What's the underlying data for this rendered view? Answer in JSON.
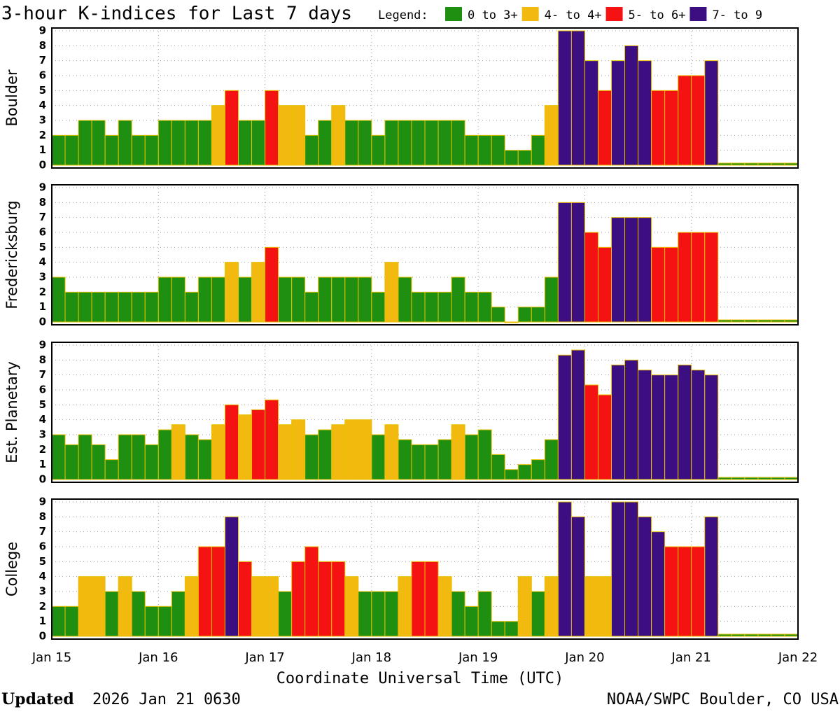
{
  "title": "3-hour K-indices for Last 7 days",
  "legend_label": "Legend:",
  "legend": [
    {
      "label": "0 to 3+",
      "color": "#1f8f12"
    },
    {
      "label": "4- to 4+",
      "color": "#f2b90f"
    },
    {
      "label": "5- to 6+",
      "color": "#f41212"
    },
    {
      "label": "7- to 9",
      "color": "#3b0f82"
    }
  ],
  "x_axis": {
    "xlabel": "Coordinate Universal Time (UTC)",
    "xlim": [
      0,
      168
    ],
    "xticks": [
      {
        "value": 0,
        "label": "Jan 15"
      },
      {
        "value": 24,
        "label": "Jan 16"
      },
      {
        "value": 48,
        "label": "Jan 17"
      },
      {
        "value": 72,
        "label": "Jan 18"
      },
      {
        "value": 96,
        "label": "Jan 19"
      },
      {
        "value": 120,
        "label": "Jan 20"
      },
      {
        "value": 144,
        "label": "Jan 21"
      },
      {
        "value": 168,
        "label": "Jan 22"
      }
    ]
  },
  "footer": {
    "updated": "Updated",
    "time": "2026 Jan 21 0630",
    "source": "NOAA/SWPC Boulder, CO USA"
  },
  "chart_data": [
    {
      "type": "bar",
      "ylabel": "Boulder",
      "ylim": [
        0,
        9
      ],
      "yticks": [
        0,
        1,
        2,
        3,
        4,
        5,
        6,
        7,
        8,
        9
      ],
      "grid": true,
      "x": [
        0,
        3,
        6,
        9,
        12,
        15,
        18,
        21,
        24,
        27,
        30,
        33,
        36,
        39,
        42,
        45,
        48,
        51,
        54,
        57,
        60,
        63,
        66,
        69,
        72,
        75,
        78,
        81,
        84,
        87,
        90,
        93,
        96,
        99,
        102,
        105,
        108,
        111,
        114,
        117,
        120,
        123,
        126,
        129,
        132,
        135,
        138,
        141,
        144,
        147,
        150,
        153,
        156,
        159,
        162,
        165
      ],
      "values": [
        2,
        2,
        3,
        3,
        2,
        3,
        2,
        2,
        3,
        3,
        3,
        3,
        4,
        5,
        3,
        3,
        5,
        4,
        4,
        2,
        3,
        4,
        3,
        3,
        2,
        3,
        3,
        3,
        3,
        3,
        3,
        2,
        2,
        2,
        1,
        1,
        2,
        4,
        9,
        9,
        7,
        5,
        7,
        8,
        7,
        5,
        5,
        6,
        6,
        7,
        null,
        null,
        null,
        null,
        null,
        null
      ],
      "colors": [
        "#1f8f12",
        "#1f8f12",
        "#1f8f12",
        "#1f8f12",
        "#1f8f12",
        "#1f8f12",
        "#1f8f12",
        "#1f8f12",
        "#1f8f12",
        "#1f8f12",
        "#1f8f12",
        "#1f8f12",
        "#f2b90f",
        "#f41212",
        "#1f8f12",
        "#1f8f12",
        "#f41212",
        "#f2b90f",
        "#f2b90f",
        "#1f8f12",
        "#1f8f12",
        "#f2b90f",
        "#1f8f12",
        "#1f8f12",
        "#1f8f12",
        "#1f8f12",
        "#1f8f12",
        "#1f8f12",
        "#1f8f12",
        "#1f8f12",
        "#1f8f12",
        "#1f8f12",
        "#1f8f12",
        "#1f8f12",
        "#1f8f12",
        "#1f8f12",
        "#1f8f12",
        "#f2b90f",
        "#3b0f82",
        "#3b0f82",
        "#3b0f82",
        "#f41212",
        "#3b0f82",
        "#3b0f82",
        "#3b0f82",
        "#f41212",
        "#f41212",
        "#f41212",
        "#f41212",
        "#3b0f82",
        null,
        null,
        null,
        null,
        null,
        null
      ]
    },
    {
      "type": "bar",
      "ylabel": "Fredericksburg",
      "ylim": [
        0,
        9
      ],
      "yticks": [
        0,
        1,
        2,
        3,
        4,
        5,
        6,
        7,
        8,
        9
      ],
      "grid": true,
      "x": [
        0,
        3,
        6,
        9,
        12,
        15,
        18,
        21,
        24,
        27,
        30,
        33,
        36,
        39,
        42,
        45,
        48,
        51,
        54,
        57,
        60,
        63,
        66,
        69,
        72,
        75,
        78,
        81,
        84,
        87,
        90,
        93,
        96,
        99,
        102,
        105,
        108,
        111,
        114,
        117,
        120,
        123,
        126,
        129,
        132,
        135,
        138,
        141,
        144,
        147,
        150,
        153,
        156,
        159,
        162,
        165
      ],
      "values": [
        3,
        2,
        2,
        2,
        2,
        2,
        2,
        2,
        3,
        3,
        2,
        3,
        3,
        4,
        3,
        4,
        5,
        3,
        3,
        2,
        3,
        3,
        3,
        3,
        2,
        4,
        3,
        2,
        2,
        2,
        3,
        2,
        2,
        1,
        0,
        1,
        1,
        3,
        8,
        8,
        6,
        5,
        7,
        7,
        7,
        5,
        5,
        6,
        6,
        6,
        null,
        null,
        null,
        null,
        null,
        null
      ],
      "colors": [
        "#1f8f12",
        "#1f8f12",
        "#1f8f12",
        "#1f8f12",
        "#1f8f12",
        "#1f8f12",
        "#1f8f12",
        "#1f8f12",
        "#1f8f12",
        "#1f8f12",
        "#1f8f12",
        "#1f8f12",
        "#1f8f12",
        "#f2b90f",
        "#1f8f12",
        "#f2b90f",
        "#f41212",
        "#1f8f12",
        "#1f8f12",
        "#1f8f12",
        "#1f8f12",
        "#1f8f12",
        "#1f8f12",
        "#1f8f12",
        "#1f8f12",
        "#f2b90f",
        "#1f8f12",
        "#1f8f12",
        "#1f8f12",
        "#1f8f12",
        "#1f8f12",
        "#1f8f12",
        "#1f8f12",
        "#1f8f12",
        "#1f8f12",
        "#1f8f12",
        "#1f8f12",
        "#1f8f12",
        "#3b0f82",
        "#3b0f82",
        "#f41212",
        "#f41212",
        "#3b0f82",
        "#3b0f82",
        "#3b0f82",
        "#f41212",
        "#f41212",
        "#f41212",
        "#f41212",
        "#f41212",
        null,
        null,
        null,
        null,
        null,
        null
      ]
    },
    {
      "type": "bar",
      "ylabel": "Est. Planetary",
      "ylim": [
        0,
        9
      ],
      "yticks": [
        0,
        1,
        2,
        3,
        4,
        5,
        6,
        7,
        8,
        9
      ],
      "grid": true,
      "x": [
        0,
        3,
        6,
        9,
        12,
        15,
        18,
        21,
        24,
        27,
        30,
        33,
        36,
        39,
        42,
        45,
        48,
        51,
        54,
        57,
        60,
        63,
        66,
        69,
        72,
        75,
        78,
        81,
        84,
        87,
        90,
        93,
        96,
        99,
        102,
        105,
        108,
        111,
        114,
        117,
        120,
        123,
        126,
        129,
        132,
        135,
        138,
        141,
        144,
        147,
        150,
        153,
        156,
        159,
        162,
        165
      ],
      "values": [
        3,
        2.33,
        3,
        2.33,
        1.33,
        3,
        3,
        2.33,
        3.33,
        3.67,
        3,
        2.67,
        3.67,
        5,
        4.33,
        4.67,
        5.33,
        3.67,
        4,
        3,
        3.33,
        3.67,
        4,
        4,
        3,
        3.67,
        2.67,
        2.33,
        2.33,
        2.67,
        3.67,
        3,
        3.33,
        1.67,
        0.67,
        1,
        1.33,
        2.67,
        8.33,
        8.67,
        6.33,
        5.67,
        7.67,
        8,
        7.33,
        7,
        7,
        7.67,
        7.33,
        7,
        null,
        null,
        null,
        null,
        null,
        null
      ],
      "colors": [
        "#1f8f12",
        "#1f8f12",
        "#1f8f12",
        "#1f8f12",
        "#1f8f12",
        "#1f8f12",
        "#1f8f12",
        "#1f8f12",
        "#1f8f12",
        "#f2b90f",
        "#1f8f12",
        "#1f8f12",
        "#f2b90f",
        "#f41212",
        "#f2b90f",
        "#f41212",
        "#f41212",
        "#f2b90f",
        "#f2b90f",
        "#1f8f12",
        "#1f8f12",
        "#f2b90f",
        "#f2b90f",
        "#f2b90f",
        "#1f8f12",
        "#f2b90f",
        "#1f8f12",
        "#1f8f12",
        "#1f8f12",
        "#1f8f12",
        "#f2b90f",
        "#1f8f12",
        "#1f8f12",
        "#1f8f12",
        "#1f8f12",
        "#1f8f12",
        "#1f8f12",
        "#1f8f12",
        "#3b0f82",
        "#3b0f82",
        "#f41212",
        "#f41212",
        "#3b0f82",
        "#3b0f82",
        "#3b0f82",
        "#3b0f82",
        "#3b0f82",
        "#3b0f82",
        "#3b0f82",
        "#3b0f82",
        null,
        null,
        null,
        null,
        null,
        null
      ]
    },
    {
      "type": "bar",
      "ylabel": "College",
      "ylim": [
        0,
        9
      ],
      "yticks": [
        0,
        1,
        2,
        3,
        4,
        5,
        6,
        7,
        8,
        9
      ],
      "grid": true,
      "x": [
        0,
        3,
        6,
        9,
        12,
        15,
        18,
        21,
        24,
        27,
        30,
        33,
        36,
        39,
        42,
        45,
        48,
        51,
        54,
        57,
        60,
        63,
        66,
        69,
        72,
        75,
        78,
        81,
        84,
        87,
        90,
        93,
        96,
        99,
        102,
        105,
        108,
        111,
        114,
        117,
        120,
        123,
        126,
        129,
        132,
        135,
        138,
        141,
        144,
        147,
        150,
        153,
        156,
        159,
        162,
        165
      ],
      "values": [
        2,
        2,
        4,
        4,
        3,
        4,
        3,
        2,
        2,
        3,
        4,
        6,
        6,
        8,
        5,
        4,
        4,
        3,
        5,
        6,
        5,
        5,
        4,
        3,
        3,
        3,
        4,
        5,
        5,
        4,
        3,
        2,
        3,
        1,
        1,
        4,
        3,
        4,
        9,
        8,
        4,
        4,
        9,
        9,
        8,
        7,
        6,
        6,
        6,
        8,
        null,
        null,
        null,
        null,
        null,
        null
      ],
      "colors": [
        "#1f8f12",
        "#1f8f12",
        "#f2b90f",
        "#f2b90f",
        "#1f8f12",
        "#f2b90f",
        "#1f8f12",
        "#1f8f12",
        "#1f8f12",
        "#1f8f12",
        "#f2b90f",
        "#f41212",
        "#f41212",
        "#3b0f82",
        "#f41212",
        "#f2b90f",
        "#f2b90f",
        "#1f8f12",
        "#f41212",
        "#f41212",
        "#f41212",
        "#f41212",
        "#f2b90f",
        "#1f8f12",
        "#1f8f12",
        "#1f8f12",
        "#f2b90f",
        "#f41212",
        "#f41212",
        "#f2b90f",
        "#1f8f12",
        "#1f8f12",
        "#1f8f12",
        "#1f8f12",
        "#1f8f12",
        "#f2b90f",
        "#1f8f12",
        "#f2b90f",
        "#3b0f82",
        "#3b0f82",
        "#f2b90f",
        "#f2b90f",
        "#3b0f82",
        "#3b0f82",
        "#3b0f82",
        "#3b0f82",
        "#f41212",
        "#f41212",
        "#f41212",
        "#3b0f82",
        null,
        null,
        null,
        null,
        null,
        null
      ]
    }
  ]
}
